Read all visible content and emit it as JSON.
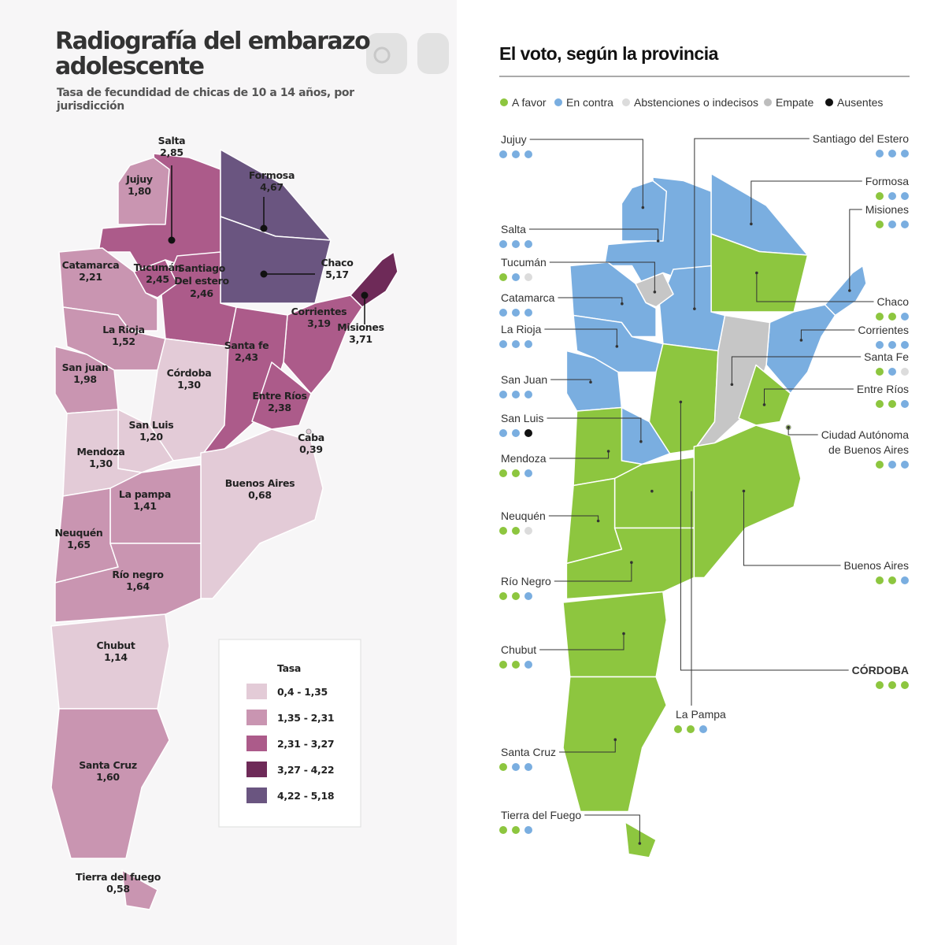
{
  "left": {
    "title_lines": [
      "Radiografía del embarazo",
      "adolescente"
    ],
    "subtitle_lines": [
      "Tasa de fecundidad de chicas de 10 a 14 años, por",
      "jurisdicción"
    ],
    "provinces": [
      {
        "name": "Salta",
        "value": "2,85"
      },
      {
        "name": "Jujuy",
        "value": "1,80"
      },
      {
        "name": "Formosa",
        "value": "4,67"
      },
      {
        "name": "Catamarca",
        "value": "2,21"
      },
      {
        "name": "Tucumán",
        "value": "2,45"
      },
      {
        "name": "Chaco",
        "value": "5,17"
      },
      {
        "name": [
          "Santiago",
          "Del estero"
        ],
        "value": "2,46"
      },
      {
        "name": "Misiones",
        "value": "3,71"
      },
      {
        "name": "Corrientes",
        "value": "3,19"
      },
      {
        "name": "La Rioja",
        "value": "1,52"
      },
      {
        "name": "Santa fe",
        "value": "2,43"
      },
      {
        "name": "San juan",
        "value": "1,98"
      },
      {
        "name": "Córdoba",
        "value": "1,30"
      },
      {
        "name": "Entre Ríos",
        "value": "2,38"
      },
      {
        "name": "San Luis",
        "value": "1,20"
      },
      {
        "name": "Caba",
        "value": "0,39"
      },
      {
        "name": "Mendoza",
        "value": "1,30"
      },
      {
        "name": "Buenos Aires",
        "value": "0,68"
      },
      {
        "name": "La pampa",
        "value": "1,41"
      },
      {
        "name": "Neuquén",
        "value": "1,65"
      },
      {
        "name": "Río negro",
        "value": "1,64"
      },
      {
        "name": "Chubut",
        "value": "1,14"
      },
      {
        "name": "Santa Cruz",
        "value": "1,60"
      },
      {
        "name": "Tierra del fuego",
        "value": "0,58"
      }
    ],
    "legend": {
      "title": "Tasa",
      "items": [
        {
          "label": "0,4 - 1,35",
          "color": "#e3cbd7"
        },
        {
          "label": "1,35 - 2,31",
          "color": "#c995b1"
        },
        {
          "label": "2,31 - 3,27",
          "color": "#ac5b8a"
        },
        {
          "label": "3,27 - 4,22",
          "color": "#6e2a58"
        },
        {
          "label": "4,22 - 5,18",
          "color": "#6a5580"
        }
      ]
    }
  },
  "right": {
    "title": "El voto, según la provincia",
    "legend": [
      {
        "label": "A favor",
        "color": "#8dc63f"
      },
      {
        "label": "En contra",
        "color": "#7aaee0"
      },
      {
        "label": "Abstenciones o indecisos",
        "color": "#dcdcdc"
      },
      {
        "label": "Empate",
        "color": "#bdbdbd"
      },
      {
        "label": "Ausentes",
        "color": "#111111"
      }
    ],
    "provinces": [
      {
        "name": "Jujuy",
        "dots": [
          "#7aaee0",
          "#7aaee0",
          "#7aaee0"
        ]
      },
      {
        "name": "Santiago del Estero",
        "dots": [
          "#7aaee0",
          "#7aaee0",
          "#7aaee0"
        ]
      },
      {
        "name": "Formosa",
        "dots": [
          "#8dc63f",
          "#7aaee0",
          "#7aaee0"
        ]
      },
      {
        "name": "Misiones",
        "dots": [
          "#8dc63f",
          "#7aaee0",
          "#7aaee0"
        ]
      },
      {
        "name": "Salta",
        "dots": [
          "#7aaee0",
          "#7aaee0",
          "#7aaee0"
        ]
      },
      {
        "name": "Tucumán",
        "dots": [
          "#8dc63f",
          "#7aaee0",
          "#dcdcdc"
        ]
      },
      {
        "name": "Catamarca",
        "dots": [
          "#7aaee0",
          "#7aaee0",
          "#7aaee0"
        ]
      },
      {
        "name": "Chaco",
        "dots": [
          "#8dc63f",
          "#8dc63f",
          "#7aaee0"
        ]
      },
      {
        "name": "La Rioja",
        "dots": [
          "#7aaee0",
          "#7aaee0",
          "#7aaee0"
        ]
      },
      {
        "name": "Corrientes",
        "dots": [
          "#7aaee0",
          "#7aaee0",
          "#7aaee0"
        ]
      },
      {
        "name": "Santa Fe",
        "dots": [
          "#8dc63f",
          "#7aaee0",
          "#dcdcdc"
        ]
      },
      {
        "name": "San Juan",
        "dots": [
          "#7aaee0",
          "#7aaee0",
          "#7aaee0"
        ]
      },
      {
        "name": "Entre Ríos",
        "dots": [
          "#8dc63f",
          "#8dc63f",
          "#7aaee0"
        ]
      },
      {
        "name": "San Luis",
        "dots": [
          "#7aaee0",
          "#7aaee0",
          "#111111"
        ]
      },
      {
        "name": [
          "Ciudad Autónoma",
          "de Buenos Aires"
        ],
        "dots": [
          "#8dc63f",
          "#7aaee0",
          "#7aaee0"
        ]
      },
      {
        "name": "Mendoza",
        "dots": [
          "#8dc63f",
          "#8dc63f",
          "#7aaee0"
        ]
      },
      {
        "name": "Neuquén",
        "dots": [
          "#8dc63f",
          "#8dc63f",
          "#dcdcdc"
        ]
      },
      {
        "name": "Buenos Aires",
        "dots": [
          "#8dc63f",
          "#8dc63f",
          "#7aaee0"
        ]
      },
      {
        "name": "Río Negro",
        "dots": [
          "#8dc63f",
          "#8dc63f",
          "#7aaee0"
        ]
      },
      {
        "name": "Chubut",
        "dots": [
          "#8dc63f",
          "#8dc63f",
          "#7aaee0"
        ]
      },
      {
        "name": "CÓRDOBA",
        "dots": [
          "#8dc63f",
          "#8dc63f",
          "#8dc63f"
        ]
      },
      {
        "name": "La Pampa",
        "dots": [
          "#8dc63f",
          "#8dc63f",
          "#7aaee0"
        ]
      },
      {
        "name": "Santa Cruz",
        "dots": [
          "#8dc63f",
          "#7aaee0",
          "#7aaee0"
        ]
      },
      {
        "name": "Tierra del Fuego",
        "dots": [
          "#8dc63f",
          "#8dc63f",
          "#7aaee0"
        ]
      }
    ]
  }
}
